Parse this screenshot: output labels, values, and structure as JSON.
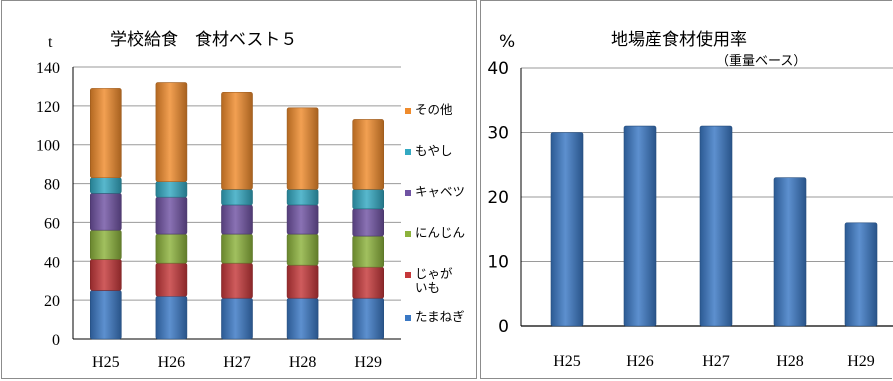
{
  "chart_data": [
    {
      "type": "bar",
      "stacked": true,
      "title": "学校給食　食材ベスト５",
      "ylabel": "t",
      "xlabel": "",
      "categories": [
        "H25",
        "H26",
        "H27",
        "H28",
        "H29"
      ],
      "ylim": [
        0,
        140
      ],
      "yticks": [
        "0",
        "20",
        "40",
        "60",
        "80",
        "100",
        "120",
        "140"
      ],
      "grid": true,
      "legend_position": "right",
      "series": [
        {
          "name": "たまねぎ",
          "values": [
            25,
            22,
            21,
            21,
            21
          ],
          "color": "#3a78c4"
        },
        {
          "name": "じゃがいも",
          "values": [
            16,
            17,
            18,
            17,
            16
          ],
          "color": "#c5383a"
        },
        {
          "name": "にんじん",
          "values": [
            15,
            15,
            15,
            16,
            16
          ],
          "color": "#8cb23c"
        },
        {
          "name": "キャベツ",
          "values": [
            19,
            19,
            15,
            15,
            14
          ],
          "color": "#7053a3"
        },
        {
          "name": "もやし",
          "values": [
            8,
            8,
            8,
            8,
            10
          ],
          "color": "#33a9c2"
        },
        {
          "name": "その他",
          "values": [
            46,
            51,
            50,
            42,
            36
          ],
          "color": "#ef8b2c"
        }
      ]
    },
    {
      "type": "bar",
      "title": "地場産食材使用率",
      "subtitle": "（重量ベース）",
      "ylabel": "%",
      "xlabel": "",
      "categories": [
        "H25",
        "H26",
        "H27",
        "H28",
        "H29"
      ],
      "values": [
        30,
        31,
        31,
        23,
        16
      ],
      "ylim": [
        0,
        40
      ],
      "yticks": [
        "0",
        "10",
        "20",
        "30",
        "40"
      ],
      "grid": true,
      "color": "#3a78c4"
    }
  ]
}
